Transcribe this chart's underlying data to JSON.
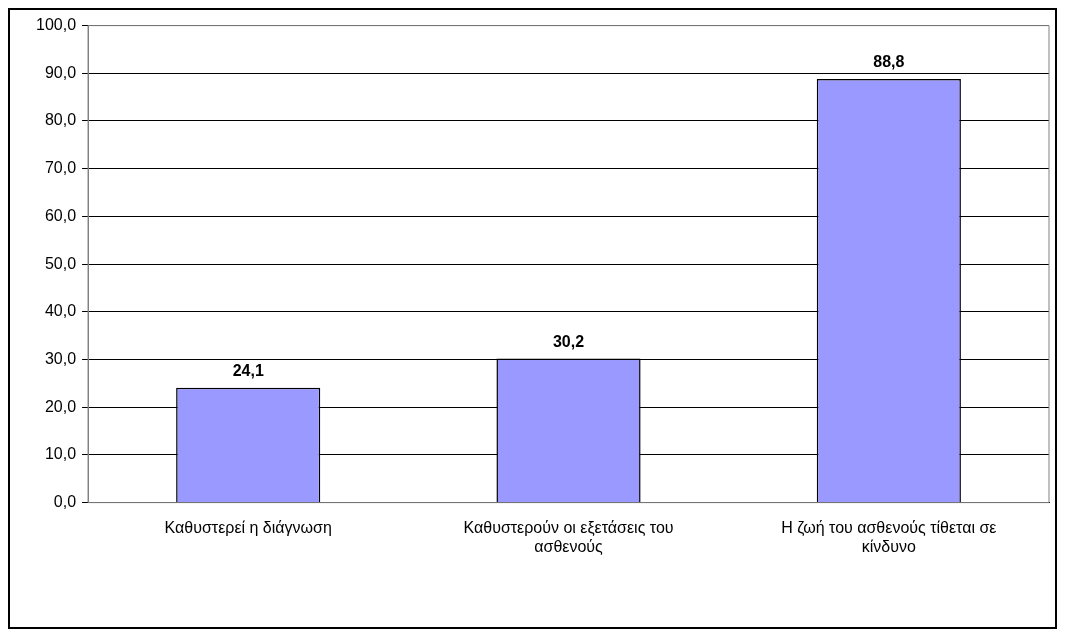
{
  "chart_data": {
    "type": "bar",
    "categories": [
      "Καθυστερεί η διάγνωση",
      "Καθυστερούν οι εξετάσεις του ασθενούς",
      "Η ζωή του ασθενούς τίθεται σε κίνδυνο"
    ],
    "values": [
      24.1,
      30.2,
      88.8
    ],
    "value_labels": [
      "24,1",
      "30,2",
      "88,8"
    ],
    "color": "#9999ff",
    "ylim": [
      0,
      100
    ],
    "yticks": [
      {
        "value": 0,
        "label": "0,0"
      },
      {
        "value": 10,
        "label": "10,0"
      },
      {
        "value": 20,
        "label": "20,0"
      },
      {
        "value": 30,
        "label": "30,0"
      },
      {
        "value": 40,
        "label": "40,0"
      },
      {
        "value": 50,
        "label": "50,0"
      },
      {
        "value": 60,
        "label": "60,0"
      },
      {
        "value": 70,
        "label": "70,0"
      },
      {
        "value": 80,
        "label": "80,0"
      },
      {
        "value": 90,
        "label": "90,0"
      },
      {
        "value": 100,
        "label": "100,0"
      }
    ],
    "grid": "y",
    "legend": false
  }
}
